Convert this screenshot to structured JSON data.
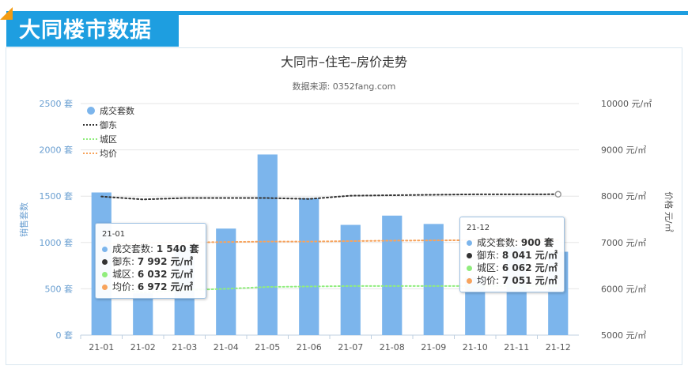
{
  "header": {
    "title": "大同楼市数据"
  },
  "chart_data": {
    "type": "bar+line",
    "title": "大同市–住宅–房价走势",
    "subtitle": "数据来源: 0352fang.com",
    "categories": [
      "21-01",
      "21-02",
      "21-03",
      "21-04",
      "21-05",
      "21-06",
      "21-07",
      "21-08",
      "21-09",
      "21-10",
      "21-11",
      "21-12"
    ],
    "bar_series": {
      "name": "成交套数",
      "values": [
        1540,
        450,
        950,
        1150,
        1950,
        1480,
        1190,
        1290,
        1200,
        620,
        950,
        900
      ],
      "color": "#7cb5ec"
    },
    "line_series": [
      {
        "name": "御东",
        "values": [
          7992,
          7930,
          7960,
          7960,
          7960,
          7940,
          8010,
          8020,
          8030,
          8040,
          8040,
          8041
        ],
        "color": "#333333",
        "style": "dotted"
      },
      {
        "name": "城区",
        "values": [
          6032,
          5920,
          5970,
          6000,
          6040,
          6050,
          6060,
          6060,
          6060,
          6060,
          6060,
          6062
        ],
        "color": "#90ed7d",
        "style": "dotted"
      },
      {
        "name": "均价",
        "values": [
          6972,
          6990,
          7000,
          7010,
          7020,
          7020,
          7030,
          7040,
          7045,
          7050,
          7050,
          7051
        ],
        "color": "#f7a35c",
        "style": "dotted"
      }
    ],
    "ylabel_left": "销售套数",
    "ylabel_right": "价格 元/㎡",
    "y_left_ticks": [
      "0 套",
      "500 套",
      "1000 套",
      "1500 套",
      "2000 套",
      "2500 套"
    ],
    "y_left_range": [
      0,
      2500
    ],
    "y_right_ticks": [
      "5000 元/㎡",
      "6000 元/㎡",
      "7000 元/㎡",
      "8000 元/㎡",
      "9000 元/㎡",
      "10000 元/㎡"
    ],
    "y_right_range": [
      5000,
      10000
    ],
    "legend": [
      "成交套数",
      "御东",
      "城区",
      "均价"
    ],
    "legend_placement": "top-left",
    "tooltips": [
      {
        "header": "21-01",
        "rows": [
          {
            "label": "成交套数: ",
            "value": "1 540 套"
          },
          {
            "label": "御东: ",
            "value": "7 992 元/㎡"
          },
          {
            "label": "城区: ",
            "value": "6 032 元/㎡"
          },
          {
            "label": "均价: ",
            "value": "6 972 元/㎡"
          }
        ]
      },
      {
        "header": "21-12",
        "rows": [
          {
            "label": "成交套数: ",
            "value": "900 套"
          },
          {
            "label": "御东: ",
            "value": "8 041 元/㎡"
          },
          {
            "label": "城区: ",
            "value": "6 062 元/㎡"
          },
          {
            "label": "均价: ",
            "value": "7 051 元/㎡"
          }
        ]
      }
    ]
  }
}
